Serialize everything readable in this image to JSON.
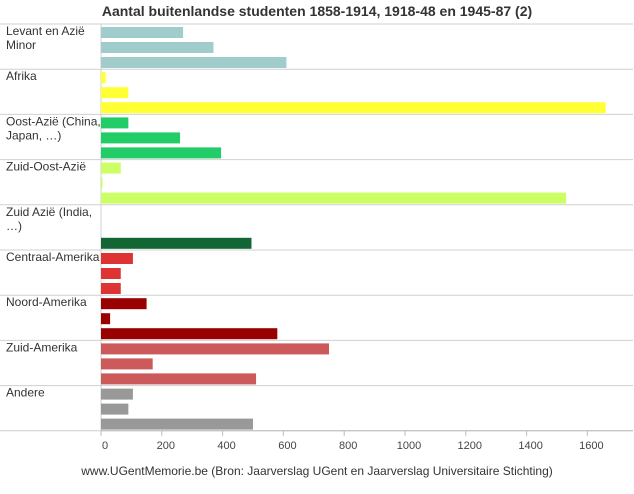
{
  "chart_data": {
    "type": "bar",
    "orientation": "horizontal",
    "title": "Aantal buitenlandse studenten 1858-1914, 1918-48 en 1945-87 (2)",
    "footer": "www.UGentMemorie.be (Bron: Jaarverslag UGent en Jaarverslag Universitaire Stichting)",
    "xlim": [
      0,
      1750
    ],
    "xticks": [
      "0",
      "200",
      "400",
      "600",
      "800",
      "1000",
      "1200",
      "1400",
      "1600"
    ],
    "xtick_values": [
      0,
      200,
      400,
      600,
      800,
      1000,
      1200,
      1400,
      1600
    ],
    "grid": false,
    "legend": "none",
    "categories": [
      {
        "label": [
          "Levant en Azië",
          "Minor"
        ],
        "colors": [
          "#a0cccc",
          "#a0cccc",
          "#a0cccc"
        ],
        "values": [
          270,
          370,
          610
        ]
      },
      {
        "label": [
          "Afrika"
        ],
        "colors": [
          "#ffff33",
          "#ffff33",
          "#ffff33"
        ],
        "values": [
          15,
          90,
          1660
        ]
      },
      {
        "label": [
          "Oost-Azië (China,",
          "Japan, …)"
        ],
        "colors": [
          "#22cc66",
          "#22cc66",
          "#22cc66"
        ],
        "values": [
          90,
          260,
          395
        ]
      },
      {
        "label": [
          "Zuid-Oost-Azië"
        ],
        "colors": [
          "#ccff66",
          "#ccff66",
          "#ccff66"
        ],
        "values": [
          65,
          5,
          1530
        ]
      },
      {
        "label": [
          "Zuid Azië (India,",
          "…)"
        ],
        "colors": [
          "#116633",
          "#116633",
          "#116633"
        ],
        "values": [
          0,
          0,
          495
        ]
      },
      {
        "label": [
          "Centraal-Amerika"
        ],
        "colors": [
          "#dd3333",
          "#dd3333",
          "#dd3333"
        ],
        "values": [
          105,
          65,
          65
        ]
      },
      {
        "label": [
          "Noord-Amerika"
        ],
        "colors": [
          "#990000",
          "#990000",
          "#990000"
        ],
        "values": [
          150,
          30,
          580
        ]
      },
      {
        "label": [
          "Zuid-Amerika"
        ],
        "colors": [
          "#cc5a5a",
          "#cc5a5a",
          "#cc5a5a"
        ],
        "values": [
          750,
          170,
          510
        ]
      },
      {
        "label": [
          "Andere"
        ],
        "colors": [
          "#999999",
          "#999999",
          "#999999"
        ],
        "values": [
          105,
          90,
          500
        ]
      }
    ]
  }
}
